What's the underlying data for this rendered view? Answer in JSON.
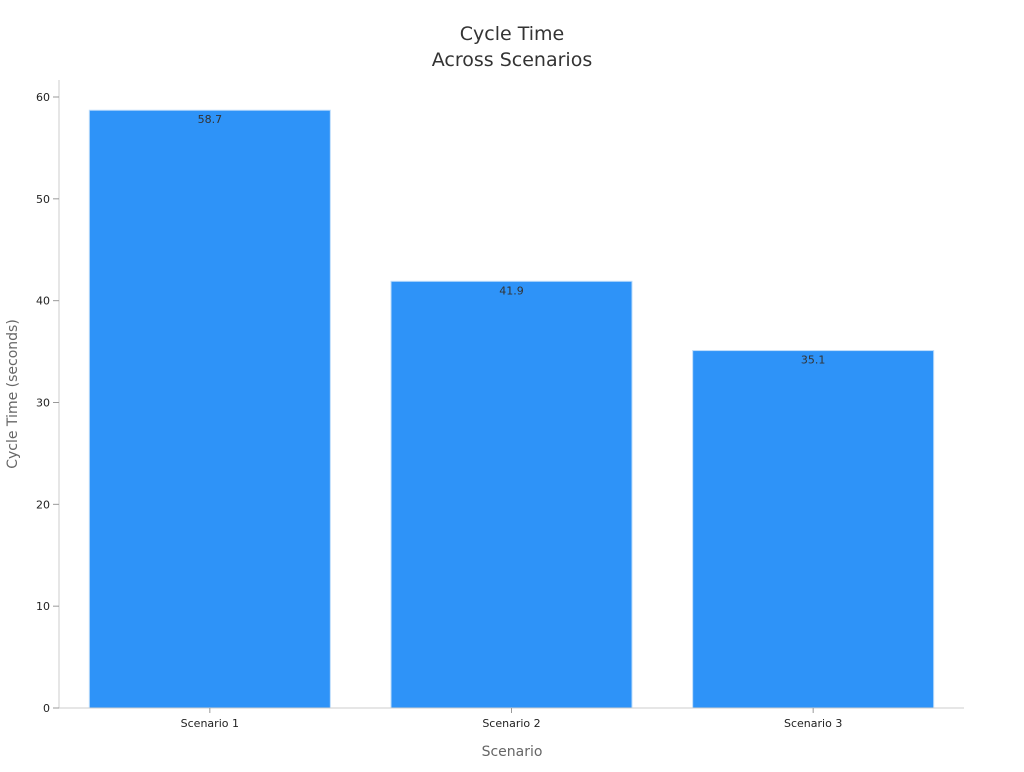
{
  "chart_data": {
    "type": "bar",
    "title": [
      "Cycle Time",
      "Across Scenarios"
    ],
    "xlabel": "Scenario",
    "ylabel": "Cycle Time (seconds)",
    "categories": [
      "Scenario 1",
      "Scenario 2",
      "Scenario 3"
    ],
    "values": [
      58.7,
      41.9,
      35.1
    ],
    "data_labels": [
      "58.7",
      "41.9",
      "35.1"
    ],
    "ylim": [
      0,
      61.7
    ],
    "yticks": [
      0,
      10,
      20,
      30,
      40,
      50,
      60
    ],
    "grid": false,
    "bar_color": "#2e93f8"
  }
}
